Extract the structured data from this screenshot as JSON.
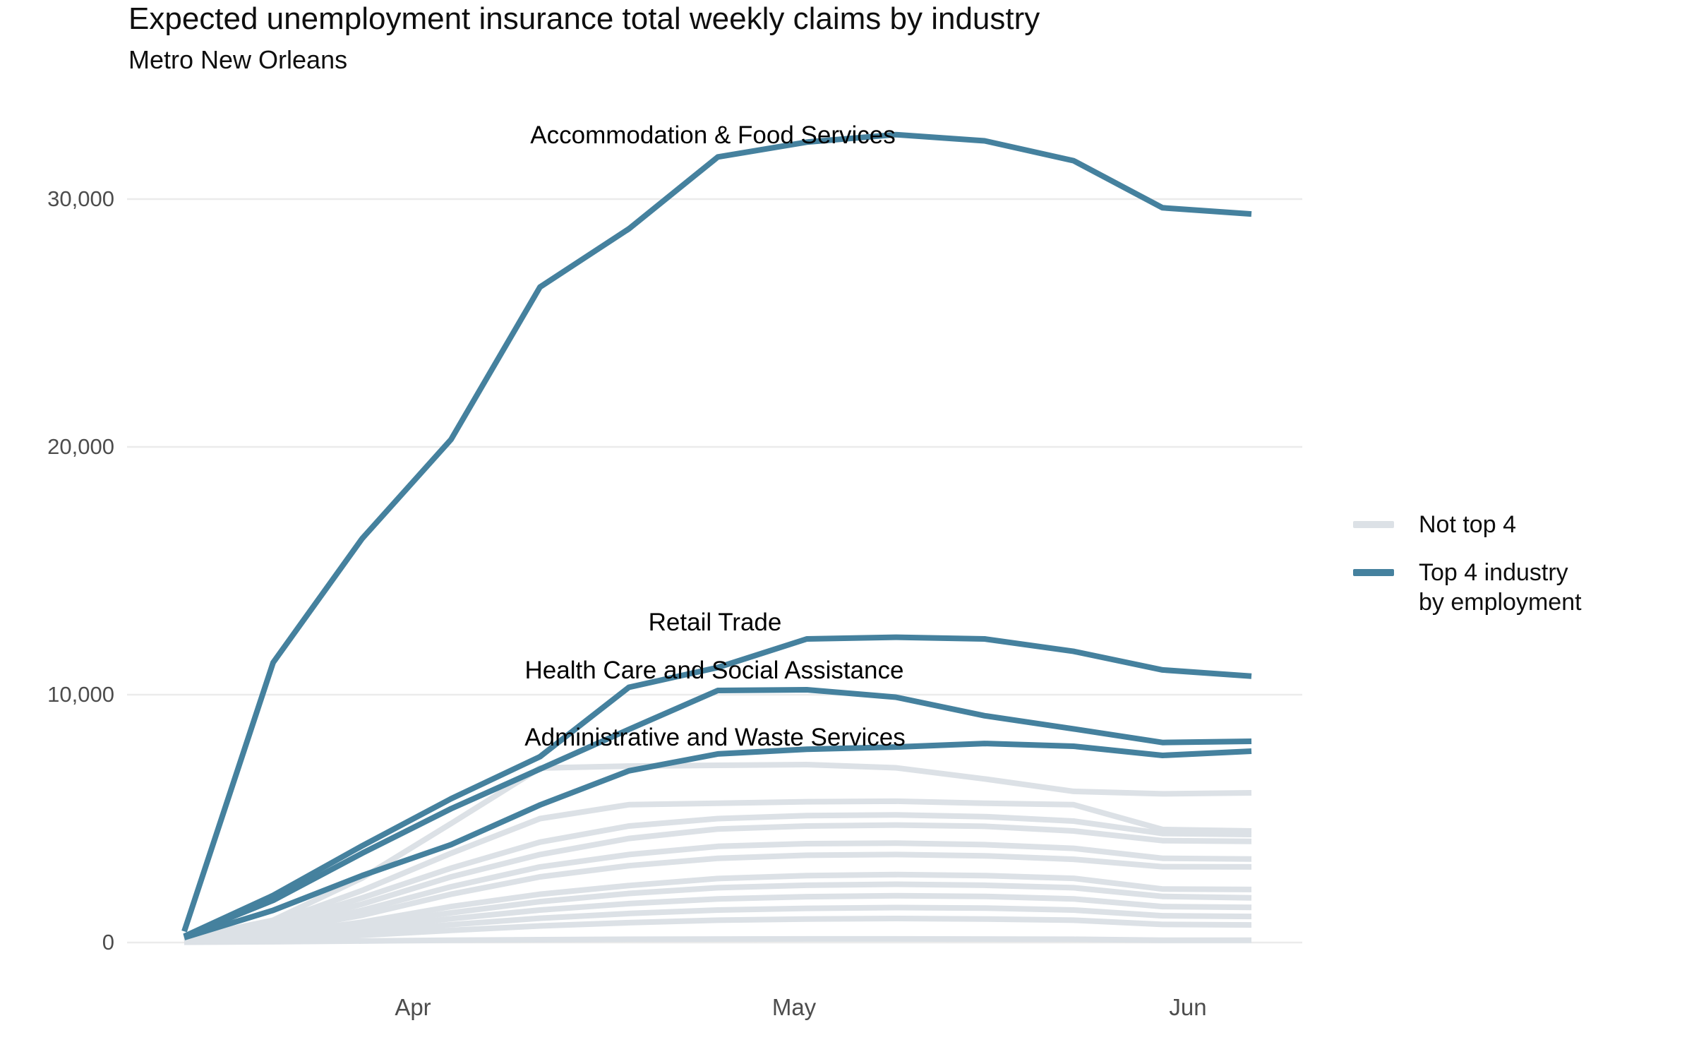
{
  "header": {
    "title": "Expected unemployment insurance total weekly claims by industry",
    "subtitle": "Metro New Orleans"
  },
  "legend": {
    "items": [
      {
        "label_lines": [
          "Not top 4"
        ],
        "color": "#DCE1E6"
      },
      {
        "label_lines": [
          "Top 4 industry",
          "by employment"
        ],
        "color": "#45819E"
      }
    ]
  },
  "axes": {
    "y": {
      "ticks": [
        {
          "value": 0,
          "label": "0"
        },
        {
          "value": 10000,
          "label": "10,000"
        },
        {
          "value": 20000,
          "label": "20,000"
        },
        {
          "value": 30000,
          "label": "30,000"
        }
      ]
    },
    "x": {
      "ticks": [
        {
          "label": "Apr"
        },
        {
          "label": "May"
        },
        {
          "label": "Jun"
        }
      ]
    }
  },
  "annotations": [
    {
      "text": "Accommodation & Food Services"
    },
    {
      "text": "Retail Trade"
    },
    {
      "text": "Health Care and Social Assistance"
    },
    {
      "text": "Administrative and Waste Services"
    }
  ],
  "chart_data": {
    "type": "line",
    "title": "Expected unemployment insurance total weekly claims by industry",
    "subtitle": "Metro New Orleans",
    "xlabel": "",
    "ylabel": "",
    "ylim": [
      0,
      33000
    ],
    "grid": "horizontal-only",
    "legend_position": "right",
    "x_tick_labels": [
      "Apr",
      "May",
      "Jun"
    ],
    "x": [
      "Mar 14",
      "Mar 21",
      "Mar 28",
      "Apr 4",
      "Apr 11",
      "Apr 18",
      "Apr 25",
      "May 2",
      "May 9",
      "May 16",
      "May 23",
      "May 30",
      "Jun 6"
    ],
    "colors": {
      "top4": "#45819E",
      "not_top4": "#DCE1E6"
    },
    "series": [
      {
        "id": "accommodation-food-services",
        "name": "Accommodation & Food Services",
        "group": "top4",
        "values": [
          450,
          11300,
          16300,
          20300,
          26450,
          28800,
          31700,
          32300,
          32600,
          32350,
          31550,
          29650,
          29400
        ]
      },
      {
        "id": "retail-trade",
        "name": "Retail Trade",
        "group": "top4",
        "values": [
          250,
          1900,
          3900,
          5800,
          7500,
          10300,
          11100,
          12250,
          12320,
          12250,
          11750,
          11000,
          10750
        ]
      },
      {
        "id": "health-care-social-assistance",
        "name": "Health Care and Social Assistance",
        "group": "top4",
        "values": [
          250,
          1700,
          3600,
          5400,
          7000,
          8600,
          10170,
          10200,
          9900,
          9150,
          8620,
          8070,
          8120
        ]
      },
      {
        "id": "administrative-waste-services",
        "name": "Administrative and Waste Services",
        "group": "top4",
        "values": [
          200,
          1300,
          2700,
          3950,
          5550,
          6930,
          7610,
          7800,
          7890,
          8030,
          7920,
          7550,
          7720
        ]
      },
      {
        "id": "not-top-4-01",
        "name": "",
        "group": "not_top4",
        "values": [
          150,
          900,
          2600,
          4800,
          7040,
          7120,
          7150,
          7180,
          7050,
          6600,
          6100,
          6000,
          6040
        ]
      },
      {
        "id": "not-top-4-02",
        "name": "",
        "group": "not_top4",
        "values": [
          120,
          800,
          2100,
          3600,
          5000,
          5560,
          5620,
          5680,
          5700,
          5620,
          5560,
          4560,
          4500
        ]
      },
      {
        "id": "not-top-4-03",
        "name": "",
        "group": "not_top4",
        "values": [
          100,
          700,
          1800,
          3000,
          4050,
          4700,
          5000,
          5120,
          5150,
          5080,
          4900,
          4400,
          4360
        ]
      },
      {
        "id": "not-top-4-04",
        "name": "",
        "group": "not_top4",
        "values": [
          100,
          620,
          1550,
          2650,
          3550,
          4200,
          4580,
          4700,
          4740,
          4690,
          4500,
          4110,
          4080
        ]
      },
      {
        "id": "not-top-4-05",
        "name": "",
        "group": "not_top4",
        "values": [
          80,
          520,
          1300,
          2250,
          3050,
          3550,
          3880,
          3990,
          4010,
          3950,
          3800,
          3400,
          3370
        ]
      },
      {
        "id": "not-top-4-06",
        "name": "",
        "group": "not_top4",
        "values": [
          80,
          450,
          1100,
          1950,
          2650,
          3100,
          3400,
          3520,
          3550,
          3500,
          3360,
          3060,
          3050
        ]
      },
      {
        "id": "not-top-4-07",
        "name": "",
        "group": "not_top4",
        "values": [
          60,
          350,
          820,
          1450,
          1950,
          2300,
          2580,
          2700,
          2740,
          2700,
          2590,
          2160,
          2140
        ]
      },
      {
        "id": "not-top-4-08",
        "name": "",
        "group": "not_top4",
        "values": [
          50,
          300,
          700,
          1200,
          1650,
          1980,
          2210,
          2310,
          2350,
          2310,
          2210,
          1860,
          1800
        ]
      },
      {
        "id": "not-top-4-09",
        "name": "",
        "group": "not_top4",
        "values": [
          40,
          250,
          560,
          960,
          1310,
          1570,
          1760,
          1850,
          1890,
          1860,
          1760,
          1450,
          1420
        ]
      },
      {
        "id": "not-top-4-10",
        "name": "",
        "group": "not_top4",
        "values": [
          30,
          190,
          420,
          720,
          980,
          1170,
          1310,
          1380,
          1410,
          1390,
          1310,
          1080,
          1050
        ]
      },
      {
        "id": "not-top-4-11",
        "name": "",
        "group": "not_top4",
        "values": [
          20,
          130,
          290,
          490,
          670,
          800,
          900,
          950,
          970,
          950,
          900,
          730,
          710
        ]
      },
      {
        "id": "not-top-4-12",
        "name": "",
        "group": "not_top4",
        "values": [
          10,
          30,
          60,
          95,
          115,
          130,
          140,
          145,
          145,
          140,
          130,
          95,
          90
        ]
      }
    ]
  }
}
